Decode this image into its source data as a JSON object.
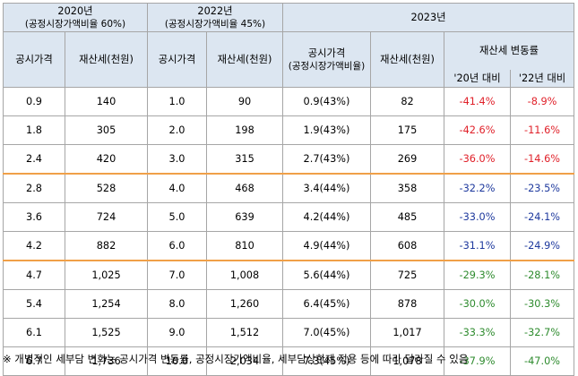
{
  "header": {
    "y2020": "2020년",
    "y2020_sub": "(공정시장가액비율 60%)",
    "y2022": "2022년",
    "y2022_sub": "(공정시장가액비율 45%)",
    "y2023": "2023년",
    "col_price": "공시가격",
    "col_tax": "재산세(천원)",
    "col_price_2023": "공시가격",
    "col_price_2023_sub": "(공정시장가액비율)",
    "col_change": "재산세  변동률",
    "col_vs2020": "'20년 대비",
    "col_vs2022": "'22년 대비"
  },
  "rows": [
    {
      "p20": "0.9",
      "t20": "140",
      "p22": "1.0",
      "t22": "90",
      "p23": "0.9(43%)",
      "t23": "82",
      "c20": "-41.4%",
      "c22": "-8.9%",
      "c20c": "red",
      "c22c": "red"
    },
    {
      "p20": "1.8",
      "t20": "305",
      "p22": "2.0",
      "t22": "198",
      "p23": "1.9(43%)",
      "t23": "175",
      "c20": "-42.6%",
      "c22": "-11.6%",
      "c20c": "red",
      "c22c": "red"
    },
    {
      "p20": "2.4",
      "t20": "420",
      "p22": "3.0",
      "t22": "315",
      "p23": "2.7(43%)",
      "t23": "269",
      "c20": "-36.0%",
      "c22": "-14.6%",
      "c20c": "red",
      "c22c": "red"
    },
    {
      "p20": "2.8",
      "t20": "528",
      "p22": "4.0",
      "t22": "468",
      "p23": "3.4(44%)",
      "t23": "358",
      "c20": "-32.2%",
      "c22": "-23.5%",
      "c20c": "blue",
      "c22c": "blue"
    },
    {
      "p20": "3.6",
      "t20": "724",
      "p22": "5.0",
      "t22": "639",
      "p23": "4.2(44%)",
      "t23": "485",
      "c20": "-33.0%",
      "c22": "-24.1%",
      "c20c": "blue",
      "c22c": "blue"
    },
    {
      "p20": "4.2",
      "t20": "882",
      "p22": "6.0",
      "t22": "810",
      "p23": "4.9(44%)",
      "t23": "608",
      "c20": "-31.1%",
      "c22": "-24.9%",
      "c20c": "blue",
      "c22c": "blue"
    },
    {
      "p20": "4.7",
      "t20": "1,025",
      "p22": "7.0",
      "t22": "1,008",
      "p23": "5.6(44%)",
      "t23": "725",
      "c20": "-29.3%",
      "c22": "-28.1%",
      "c20c": "green",
      "c22c": "green"
    },
    {
      "p20": "5.4",
      "t20": "1,254",
      "p22": "8.0",
      "t22": "1,260",
      "p23": "6.4(45%)",
      "t23": "878",
      "c20": "-30.0%",
      "c22": "-30.3%",
      "c20c": "green",
      "c22c": "green"
    },
    {
      "p20": "6.1",
      "t20": "1,525",
      "p22": "9.0",
      "t22": "1,512",
      "p23": "7.0(45%)",
      "t23": "1,017",
      "c20": "-33.3%",
      "c22": "-32.7%",
      "c20c": "green",
      "c22c": "green"
    },
    {
      "p20": "6.7",
      "t20": "1,736",
      "p22": "10.0",
      "t22": "2,034",
      "p23": "7.3(45%)",
      "t23": "1,078",
      "c20": "-37.9%",
      "c22": "-47.0%",
      "c20c": "green",
      "c22c": "green"
    }
  ],
  "group_break_rows": [
    3,
    6
  ],
  "colors": {
    "red": "#e0212a",
    "blue": "#1f3a9e",
    "green": "#2e8b2e",
    "header_bg": "#dce6f1",
    "separator": "#f0a048"
  },
  "footnote": "※ 개별적인 세부담 변화는 공시가격 변동률, 공정시장가액비율, 세부담상한제 적용 등에 따라 달라질 수 있음"
}
